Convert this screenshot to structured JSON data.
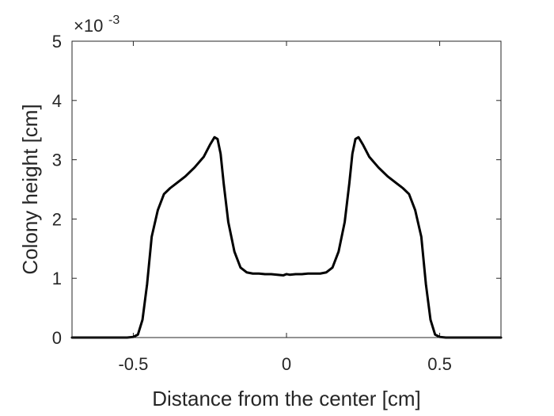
{
  "chart_data": {
    "type": "line",
    "xlabel": "Distance from the center [cm]",
    "ylabel": "Colony height [cm]",
    "xlim": [
      -0.7,
      0.7
    ],
    "ylim": [
      0,
      5
    ],
    "xticks": [
      -0.5,
      0,
      0.5
    ],
    "xtick_labels": [
      "-0.5",
      "0",
      "0.5"
    ],
    "yticks": [
      0,
      1,
      2,
      3,
      4,
      5
    ],
    "ytick_labels": [
      "0",
      "1",
      "2",
      "3",
      "4",
      "5"
    ],
    "y_exponent_base": "×10",
    "y_exponent": "-3",
    "grid": false,
    "box": true,
    "series": [
      {
        "color": "#000000",
        "x": [
          -0.7,
          -0.52,
          -0.5,
          -0.485,
          -0.47,
          -0.455,
          -0.44,
          -0.42,
          -0.4,
          -0.38,
          -0.36,
          -0.33,
          -0.3,
          -0.27,
          -0.25,
          -0.235,
          -0.225,
          -0.215,
          -0.205,
          -0.19,
          -0.17,
          -0.15,
          -0.13,
          -0.11,
          -0.09,
          -0.07,
          -0.05,
          -0.03,
          -0.01,
          0.0,
          0.01,
          0.03,
          0.05,
          0.07,
          0.09,
          0.11,
          0.13,
          0.15,
          0.17,
          0.19,
          0.205,
          0.215,
          0.225,
          0.235,
          0.25,
          0.27,
          0.3,
          0.33,
          0.36,
          0.38,
          0.4,
          0.42,
          0.44,
          0.455,
          0.47,
          0.485,
          0.5,
          0.52,
          0.7
        ],
        "y": [
          0,
          0,
          0.01,
          0.05,
          0.3,
          0.9,
          1.7,
          2.15,
          2.42,
          2.52,
          2.6,
          2.72,
          2.87,
          3.05,
          3.25,
          3.38,
          3.35,
          3.1,
          2.6,
          1.95,
          1.45,
          1.18,
          1.1,
          1.08,
          1.08,
          1.07,
          1.07,
          1.06,
          1.05,
          1.07,
          1.06,
          1.07,
          1.07,
          1.08,
          1.08,
          1.08,
          1.1,
          1.18,
          1.45,
          1.95,
          2.6,
          3.1,
          3.35,
          3.38,
          3.25,
          3.05,
          2.87,
          2.72,
          2.6,
          2.52,
          2.42,
          2.15,
          1.7,
          0.9,
          0.3,
          0.05,
          0.01,
          0,
          0
        ]
      }
    ]
  }
}
